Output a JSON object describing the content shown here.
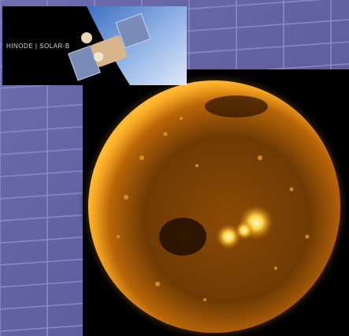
{
  "logo": {
    "text": "HINODE | SOLAR-B"
  }
}
